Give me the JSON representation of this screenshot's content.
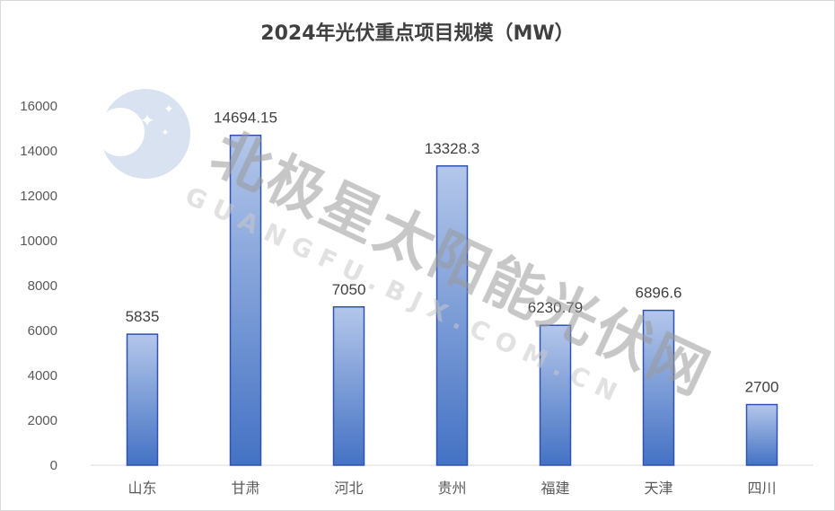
{
  "chart_data": {
    "type": "bar",
    "title": "2024年光伏重点项目规模（MW）",
    "categories": [
      "山东",
      "甘肃",
      "河北",
      "贵州",
      "福建",
      "天津",
      "四川"
    ],
    "values": [
      5835,
      14694.15,
      7050,
      13328.3,
      6230.79,
      6896.6,
      2700
    ],
    "data_labels": [
      "5835",
      "14694.15",
      "7050",
      "13328.3",
      "6230.79",
      "6896.6",
      "2700"
    ],
    "ylim": [
      0,
      16000
    ],
    "yticks": [
      "0",
      "2000",
      "4000",
      "6000",
      "8000",
      "10000",
      "12000",
      "14000",
      "16000"
    ],
    "xlabel": "",
    "ylabel": "",
    "grid": false,
    "legend": "none",
    "colors": {
      "bar_top": "#b4c7ea",
      "bar_bottom": "#4472c4",
      "bar_edge": "#2f52b0"
    }
  },
  "watermark": {
    "main": "北极星太阳能光伏网",
    "sub": "GUANGFU.BJX.COM.CN"
  }
}
